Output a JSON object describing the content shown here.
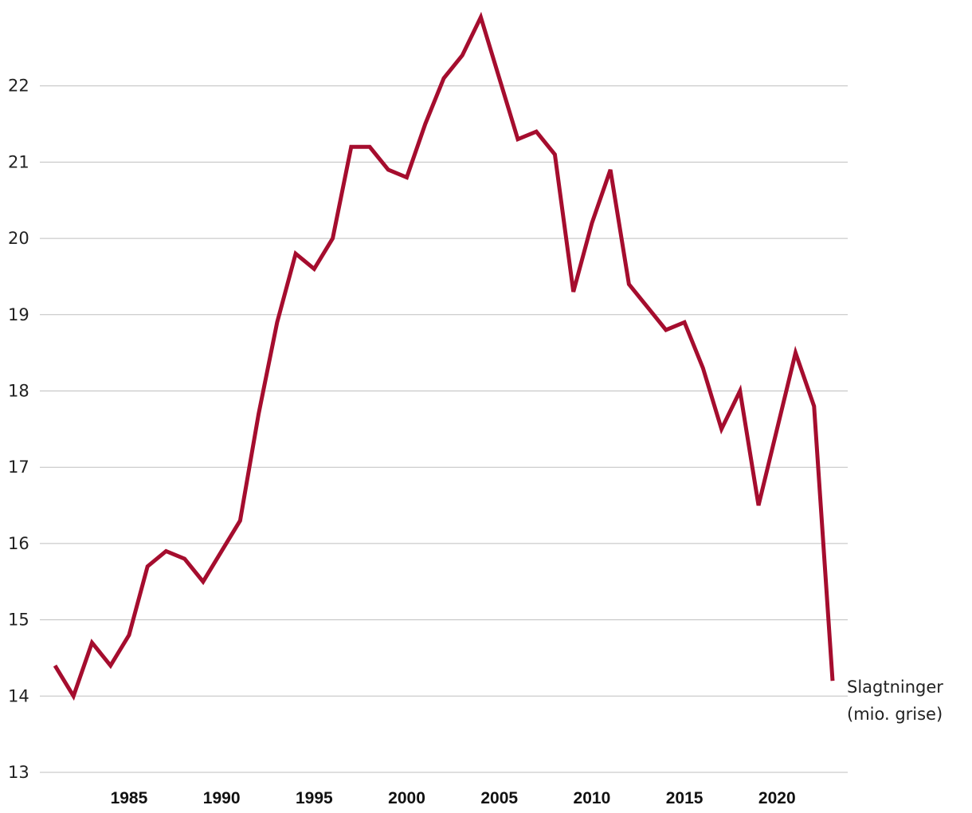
{
  "chart_data": {
    "type": "line",
    "title": "",
    "xlabel": "",
    "ylabel": "",
    "x": [
      1981,
      1982,
      1983,
      1984,
      1985,
      1986,
      1987,
      1988,
      1989,
      1990,
      1991,
      1992,
      1993,
      1994,
      1995,
      1996,
      1997,
      1998,
      1999,
      2000,
      2001,
      2002,
      2003,
      2004,
      2005,
      2006,
      2007,
      2008,
      2009,
      2010,
      2011,
      2012,
      2013,
      2014,
      2015,
      2016,
      2017,
      2018,
      2019,
      2020,
      2021,
      2022,
      2023
    ],
    "series": [
      {
        "name": "Slagtninger (mio. grise)",
        "label_lines": [
          "Slagtninger",
          "(mio. grise)"
        ],
        "color": "#a50d2e",
        "values": [
          14.4,
          14.0,
          14.7,
          14.4,
          14.8,
          15.7,
          15.9,
          15.8,
          15.5,
          15.9,
          16.3,
          17.7,
          18.9,
          19.8,
          19.6,
          20.0,
          21.2,
          21.2,
          20.9,
          20.8,
          21.5,
          22.1,
          22.4,
          22.9,
          22.1,
          21.3,
          21.4,
          21.1,
          19.3,
          20.2,
          20.9,
          19.4,
          19.1,
          18.8,
          18.9,
          18.3,
          17.5,
          18.0,
          16.5,
          17.5,
          18.5,
          17.8,
          14.2
        ]
      }
    ],
    "ylim": [
      13,
      23
    ],
    "xlim": [
      1981,
      2023
    ],
    "y_ticks": [
      "13",
      "14",
      "15",
      "16",
      "17",
      "18",
      "19",
      "20",
      "21",
      "22"
    ],
    "x_ticks": [
      "1985",
      "1990",
      "1995",
      "2000",
      "2005",
      "2010",
      "2015",
      "2020"
    ],
    "grid": "horizontal",
    "gridline_color": "#bfbfbf",
    "legend": "direct label at end of line (right)"
  }
}
